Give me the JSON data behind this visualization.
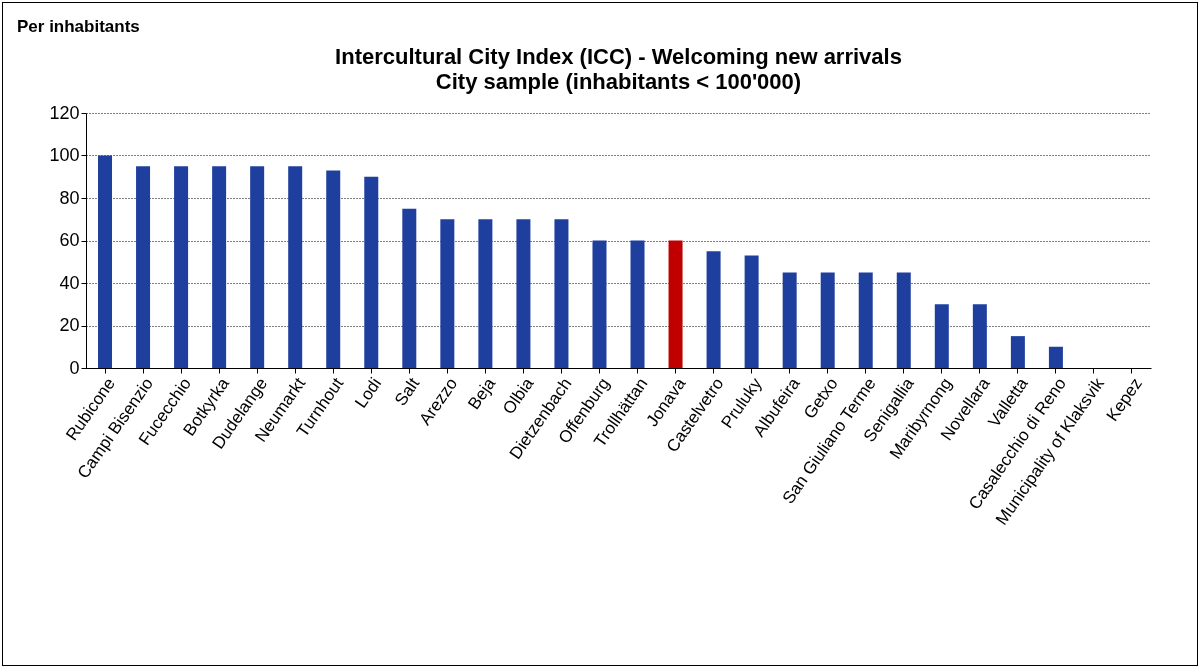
{
  "chart_data": {
    "type": "bar",
    "title": "Intercultural City Index (ICC) - Welcoming new arrivals",
    "subtitle": "City sample (inhabitants < 100'000)",
    "annotations": [
      "Per inhabitants"
    ],
    "categories": [
      "Rubicone",
      "Campi Bisenzio",
      "Fucecchio",
      "Botkyrka",
      "Dudelange",
      "Neumarkt",
      "Turnhout",
      "Lodi",
      "Salt",
      "Arezzo",
      "Beja",
      "Olbia",
      "Dietzenbach",
      "Offenburg",
      "Trollhättan",
      "Jonava",
      "Castelvetro",
      "Pruluky",
      "Albufeira",
      "Getxo",
      "San Giuliano Terme",
      "Senigallia",
      "Maribyrnong",
      "Novellara",
      "Valletta",
      "Casalecchio di Reno",
      "Municipality of Klaksvik",
      "Kepez"
    ],
    "values": [
      100,
      95,
      95,
      95,
      95,
      95,
      93,
      90,
      75,
      70,
      70,
      70,
      70,
      60,
      60,
      60,
      55,
      53,
      45,
      45,
      45,
      45,
      30,
      30,
      15,
      10,
      0,
      0
    ],
    "colors": [
      "#1f3f9f",
      "#1f3f9f",
      "#1f3f9f",
      "#1f3f9f",
      "#1f3f9f",
      "#1f3f9f",
      "#1f3f9f",
      "#1f3f9f",
      "#1f3f9f",
      "#1f3f9f",
      "#1f3f9f",
      "#1f3f9f",
      "#1f3f9f",
      "#1f3f9f",
      "#1f3f9f",
      "#c00000",
      "#1f3f9f",
      "#1f3f9f",
      "#1f3f9f",
      "#1f3f9f",
      "#1f3f9f",
      "#1f3f9f",
      "#1f3f9f",
      "#1f3f9f",
      "#1f3f9f",
      "#1f3f9f",
      "#1f3f9f",
      "#1f3f9f"
    ],
    "ylim": [
      0,
      120
    ],
    "yticks": [
      0,
      20,
      40,
      60,
      80,
      100,
      120
    ],
    "grid": "y",
    "legend": false
  }
}
